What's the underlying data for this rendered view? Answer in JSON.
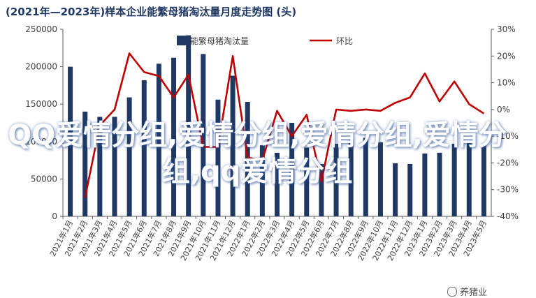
{
  "title": "(2021年—2023年)样本企业能繁母猪淘汰量月度走势图 (头)",
  "overlay_text": "QQ爱情分组,爱情分组,爱情分组,爱情分组,qq爱情分组",
  "watermark_text": "养猪业",
  "chart_data": {
    "type": "bar+line",
    "categories": [
      "2021年1月",
      "2021年2月",
      "2021年3月",
      "2021年4月",
      "2021年5月",
      "2021年6月",
      "2021年7月",
      "2021年8月",
      "2021年9月",
      "2021年10月",
      "2021年11月",
      "2021年12月",
      "2022年1月",
      "2022年2月",
      "2022年3月",
      "2022年4月",
      "2022年5月",
      "2022年6月",
      "2022年7月",
      "2022年8月",
      "2022年9月",
      "2022年10月",
      "2022年11月",
      "2022年12月",
      "2023年1月",
      "2023年2月",
      "2023年3月",
      "2023年4月",
      "2023年5月"
    ],
    "series": [
      {
        "name": "能繁母猪淘汰量",
        "type": "bar",
        "axis": "left",
        "values": [
          200000,
          140000,
          133000,
          133000,
          159000,
          182000,
          204000,
          212000,
          242000,
          217000,
          156000,
          188000,
          153000,
          95000,
          85000,
          125000,
          92000,
          70000,
          97000,
          102000,
          105000,
          99000,
          71000,
          70000,
          84000,
          85000,
          97000,
          98000,
          96000
        ]
      },
      {
        "name": "环比",
        "type": "line",
        "axis": "right",
        "values": [
          null,
          -33,
          -6,
          0,
          21,
          14,
          12.5,
          4.5,
          13,
          -14,
          -14,
          20,
          -18,
          -19,
          -0.5,
          -10,
          -2,
          -27,
          0,
          -0.5,
          0,
          -0.5,
          2.5,
          4.5,
          13.5,
          3,
          10.5,
          2,
          -1.5
        ]
      }
    ],
    "y_left": {
      "min": 0,
      "max": 250000,
      "ticks": [
        0,
        50000,
        100000,
        150000,
        200000,
        250000
      ]
    },
    "y_right": {
      "min": -40,
      "max": 30,
      "ticks": [
        "-40%",
        "-30%",
        "-20%",
        "-10%",
        "0%",
        "10%",
        "20%",
        "30%"
      ]
    },
    "legend_position": "top-center",
    "grid": false,
    "colors": {
      "bar": "#1f3864",
      "line": "#c00000",
      "axis": "#595959"
    }
  }
}
